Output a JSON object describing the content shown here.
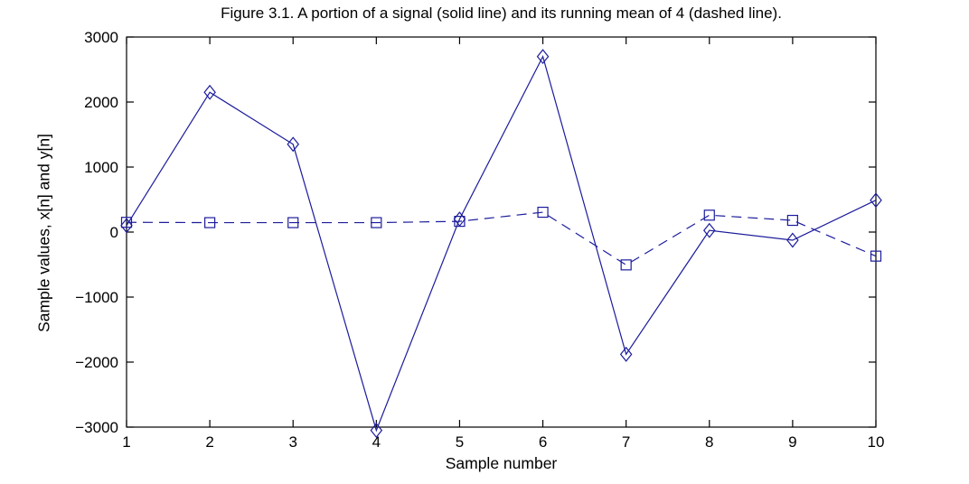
{
  "figure": {
    "background": "#ffffff",
    "axis_color": "#000000",
    "line_color": "#1c1c9c"
  },
  "chart_data": {
    "type": "line",
    "title": "Figure 3.1. A portion of a signal (solid line) and its running mean of 4 (dashed line).",
    "xlabel": "Sample number",
    "ylabel": "Sample values, x[n] and y[n]",
    "x": [
      1,
      2,
      3,
      4,
      5,
      6,
      7,
      8,
      9,
      10
    ],
    "series": [
      {
        "name": "x[n] signal (solid line)",
        "style": "solid",
        "marker": "diamond",
        "color": "#1c1c9c",
        "values": [
          100,
          2150,
          1350,
          -3050,
          200,
          2700,
          -1880,
          25,
          -125,
          490
        ]
      },
      {
        "name": "y[n] running mean of 4 (dashed line)",
        "style": "dashed",
        "marker": "square",
        "color": "#1c1c9c",
        "values": [
          150,
          145,
          145,
          145,
          165,
          305,
          -505,
          260,
          180,
          -370
        ]
      }
    ],
    "xlim": [
      1,
      10
    ],
    "ylim": [
      -3000,
      3000
    ],
    "x_ticks": [
      1,
      2,
      3,
      4,
      5,
      6,
      7,
      8,
      9,
      10
    ],
    "y_ticks": [
      3000,
      2000,
      1000,
      0,
      -1000,
      -2000,
      -3000
    ],
    "grid": false,
    "legend": "none",
    "box": true
  }
}
